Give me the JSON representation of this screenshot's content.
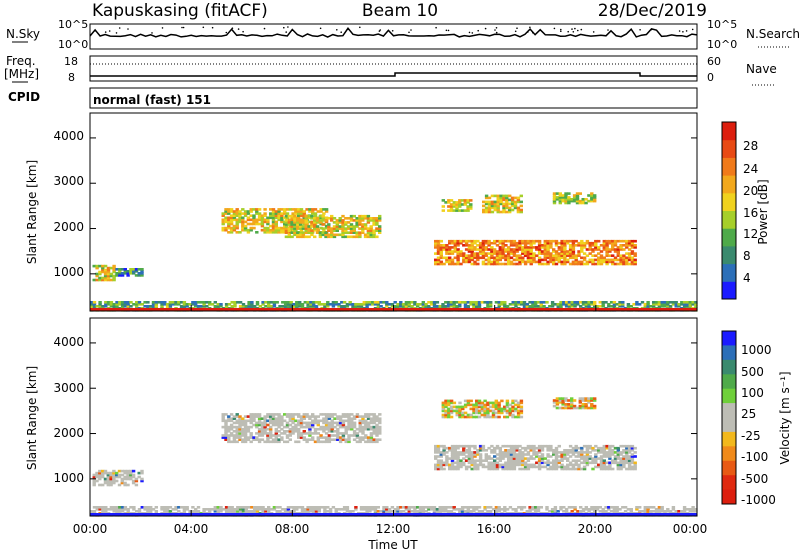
{
  "header": {
    "station": "Kapuskasing (fitACF)",
    "beam": "Beam 10",
    "date": "28/Dec/2019"
  },
  "noise_panel": {
    "left_label": "N.Sky",
    "right_label": "N.Search",
    "left_ticks": [
      "10^5",
      "10^0"
    ],
    "right_ticks": [
      "10^5",
      "10^0"
    ]
  },
  "freq_panel": {
    "left_label_1": "Freq.",
    "left_label_2": "[MHz]",
    "right_label": "Nave",
    "left_ticks": [
      "18",
      "8"
    ],
    "right_ticks": [
      "60",
      "0"
    ]
  },
  "cpid_panel": {
    "label": "CPID",
    "value": "normal (fast) 151"
  },
  "x_axis": {
    "label": "Time UT",
    "ticks": [
      "00:00",
      "04:00",
      "08:00",
      "12:00",
      "16:00",
      "20:00",
      "00:00"
    ]
  },
  "chart_data": [
    {
      "type": "heatmap",
      "title": "",
      "quantity": "Power",
      "xlabel": "Time UT",
      "ylabel": "Slant Range [km]",
      "xlim": [
        0,
        24
      ],
      "ylim": [
        180,
        4550
      ],
      "yticks": [
        "1000",
        "2000",
        "3000",
        "4000"
      ],
      "colorbar": {
        "label": "Power [dB]",
        "range": [
          0,
          30
        ],
        "ticks": [
          "4",
          "8",
          "12",
          "16",
          "20",
          "24",
          "28"
        ],
        "colors": [
          "#1b1bff",
          "#2c6fb8",
          "#3a8a6e",
          "#4faa4a",
          "#a6cf2a",
          "#f0d21e",
          "#f2a81c",
          "#f07a1a",
          "#e84a14",
          "#dc1e0e"
        ]
      },
      "regions": [
        {
          "t0": 0.1,
          "t1": 1.0,
          "r0": 850,
          "r1": 1200,
          "level": 0.55
        },
        {
          "t0": 1.0,
          "t1": 2.1,
          "r0": 950,
          "r1": 1130,
          "level": 0.25
        },
        {
          "t0": 5.2,
          "t1": 9.4,
          "r0": 1900,
          "r1": 2450,
          "level": 0.55
        },
        {
          "t0": 7.7,
          "t1": 11.5,
          "r0": 1800,
          "r1": 2300,
          "level": 0.55
        },
        {
          "t0": 13.6,
          "t1": 21.6,
          "r0": 1200,
          "r1": 1750,
          "level": 0.75
        },
        {
          "t0": 13.9,
          "t1": 15.1,
          "r0": 2380,
          "r1": 2650,
          "level": 0.55
        },
        {
          "t0": 15.5,
          "t1": 17.1,
          "r0": 2350,
          "r1": 2750,
          "level": 0.55
        },
        {
          "t0": 18.3,
          "t1": 20.0,
          "r0": 2550,
          "r1": 2800,
          "level": 0.5
        },
        {
          "t0": 0.0,
          "t1": 24.0,
          "r0": 180,
          "r1": 400,
          "level": 0.3
        }
      ]
    },
    {
      "type": "heatmap",
      "title": "",
      "quantity": "Velocity",
      "xlabel": "Time UT",
      "ylabel": "Slant Range [km]",
      "xlim": [
        0,
        24
      ],
      "ylim": [
        180,
        4550
      ],
      "yticks": [
        "1000",
        "2000",
        "3000",
        "4000"
      ],
      "colorbar": {
        "label": "Velocity [m s⁻¹]",
        "range": [
          -1200,
          1200
        ],
        "ticks": [
          "1000",
          "500",
          "100",
          "25",
          "-25",
          "-100",
          "-500",
          "-1000"
        ],
        "colors": [
          "#1b1bff",
          "#2c6fb8",
          "#3a8a6e",
          "#4faa4a",
          "#6fcf3a",
          "#bdbdb5",
          "#bdbdb5",
          "#f2b81c",
          "#f08a1a",
          "#e85a14",
          "#e02a10",
          "#dc1e0e"
        ]
      },
      "regions": [
        {
          "t0": 0.1,
          "t1": 2.1,
          "r0": 850,
          "r1": 1200,
          "level": 0.5
        },
        {
          "t0": 5.2,
          "t1": 11.5,
          "r0": 1800,
          "r1": 2450,
          "level": 0.5
        },
        {
          "t0": 13.6,
          "t1": 21.6,
          "r0": 1200,
          "r1": 1750,
          "level": 0.5
        },
        {
          "t0": 13.9,
          "t1": 17.1,
          "r0": 2350,
          "r1": 2750,
          "level": 0.85
        },
        {
          "t0": 18.3,
          "t1": 20.0,
          "r0": 2550,
          "r1": 2800,
          "level": 0.85
        },
        {
          "t0": 0.0,
          "t1": 24.0,
          "r0": 180,
          "r1": 400,
          "level": 0.5
        }
      ]
    }
  ]
}
